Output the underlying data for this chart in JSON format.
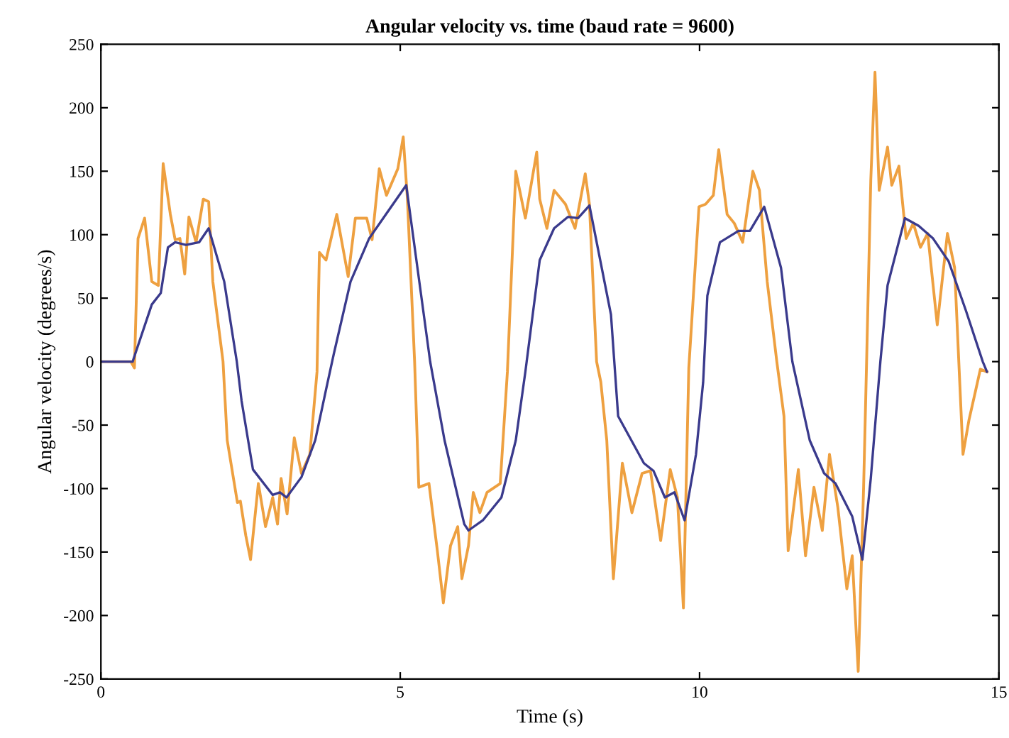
{
  "chart_data": {
    "type": "line",
    "title": "Angular velocity vs. time (baud rate = 9600)",
    "xlabel": "Time (s)",
    "ylabel": "Angular velocity (degrees/s)",
    "xlim": [
      0,
      15
    ],
    "ylim": [
      -250,
      250
    ],
    "xticks": [
      0,
      5,
      10,
      15
    ],
    "yticks": [
      -250,
      -200,
      -150,
      -100,
      -50,
      0,
      50,
      100,
      150,
      200,
      250
    ],
    "grid": false,
    "legend": false,
    "marker": "none",
    "line_style": "solid",
    "series": [
      {
        "color": "#eea040",
        "x": [
          0,
          0.5,
          0.56,
          0.62,
          0.73,
          0.85,
          0.96,
          1.04,
          1.16,
          1.24,
          1.32,
          1.4,
          1.47,
          1.59,
          1.71,
          1.8,
          1.87,
          2.04,
          2.11,
          2.28,
          2.33,
          2.42,
          2.5,
          2.63,
          2.75,
          2.87,
          2.95,
          3.01,
          3.11,
          3.23,
          3.35,
          3.49,
          3.61,
          3.65,
          3.76,
          3.94,
          4.13,
          4.25,
          4.44,
          4.53,
          4.65,
          4.77,
          4.96,
          5.05,
          5.12,
          5.24,
          5.31,
          5.48,
          5.62,
          5.72,
          5.84,
          5.96,
          6.03,
          6.14,
          6.22,
          6.33,
          6.45,
          6.67,
          6.79,
          6.93,
          7.09,
          7.28,
          7.33,
          7.45,
          7.57,
          7.76,
          7.92,
          8.09,
          8.16,
          8.28,
          8.35,
          8.45,
          8.56,
          8.71,
          8.87,
          9.04,
          9.18,
          9.35,
          9.51,
          9.63,
          9.73,
          9.82,
          9.99,
          10.1,
          10.23,
          10.32,
          10.46,
          10.58,
          10.72,
          10.89,
          11.0,
          11.13,
          11.29,
          11.41,
          11.48,
          11.65,
          11.77,
          11.91,
          12.05,
          12.17,
          12.31,
          12.46,
          12.55,
          12.65,
          12.74,
          12.79,
          12.86,
          12.93,
          13.0,
          13.14,
          13.21,
          13.33,
          13.45,
          13.57,
          13.69,
          13.81,
          13.97,
          14.14,
          14.26,
          14.33,
          14.4,
          14.5,
          14.61,
          14.69,
          14.8
        ],
        "values": [
          0,
          0,
          -5,
          97,
          113,
          63,
          60,
          156,
          116,
          96,
          97,
          69,
          114,
          94,
          128,
          126,
          63,
          0,
          -62,
          -111,
          -110,
          -137,
          -156,
          -96,
          -130,
          -107,
          -128,
          -92,
          -120,
          -60,
          -88,
          -73,
          -8,
          86,
          80,
          116,
          67,
          113,
          113,
          96,
          152,
          131,
          152,
          177,
          128,
          0,
          -99,
          -96,
          -149,
          -190,
          -145,
          -130,
          -171,
          -145,
          -103,
          -119,
          -103,
          -96,
          -8,
          150,
          113,
          165,
          128,
          105,
          135,
          124,
          105,
          148,
          124,
          0,
          -16,
          -62,
          -171,
          -80,
          -119,
          -88,
          -86,
          -141,
          -85,
          -107,
          -194,
          -5,
          122,
          124,
          131,
          167,
          116,
          109,
          94,
          150,
          135,
          63,
          0,
          -43,
          -149,
          -85,
          -153,
          -99,
          -133,
          -73,
          -115,
          -179,
          -153,
          -244,
          -99,
          0,
          143,
          228,
          135,
          169,
          139,
          154,
          97,
          109,
          90,
          101,
          29,
          101,
          74,
          0,
          -73,
          -46,
          -23,
          -6,
          -8
        ]
      },
      {
        "color": "#3a3a8c",
        "x": [
          0,
          0.53,
          0.85,
          1.0,
          1.12,
          1.24,
          1.42,
          1.64,
          1.8,
          2.06,
          2.27,
          2.35,
          2.54,
          2.87,
          2.99,
          3.1,
          3.35,
          3.58,
          3.77,
          3.89,
          4.17,
          4.48,
          4.79,
          5.1,
          5.5,
          5.74,
          6.07,
          6.14,
          6.38,
          6.69,
          6.93,
          7.09,
          7.33,
          7.57,
          7.8,
          7.97,
          8.16,
          8.52,
          8.64,
          9.07,
          9.23,
          9.42,
          9.58,
          9.75,
          9.94,
          10.06,
          10.13,
          10.34,
          10.65,
          10.84,
          11.08,
          11.36,
          11.55,
          11.84,
          12.08,
          12.27,
          12.55,
          12.72,
          12.86,
          13.02,
          13.14,
          13.43,
          13.66,
          13.9,
          14.16,
          14.45,
          14.73,
          14.8
        ],
        "values": [
          0,
          0,
          45,
          54,
          90,
          94,
          92,
          94,
          105,
          63,
          0,
          -31,
          -85,
          -105,
          -103,
          -107,
          -91,
          -62,
          -20,
          6,
          63,
          97,
          118,
          139,
          0,
          -62,
          -128,
          -133,
          -125,
          -107,
          -62,
          -8,
          80,
          105,
          114,
          113,
          123,
          37,
          -43,
          -80,
          -86,
          -107,
          -103,
          -125,
          -73,
          -16,
          52,
          94,
          103,
          103,
          122,
          74,
          0,
          -62,
          -88,
          -96,
          -122,
          -156,
          -92,
          0,
          60,
          113,
          107,
          97,
          79,
          40,
          0,
          -8
        ]
      }
    ]
  }
}
